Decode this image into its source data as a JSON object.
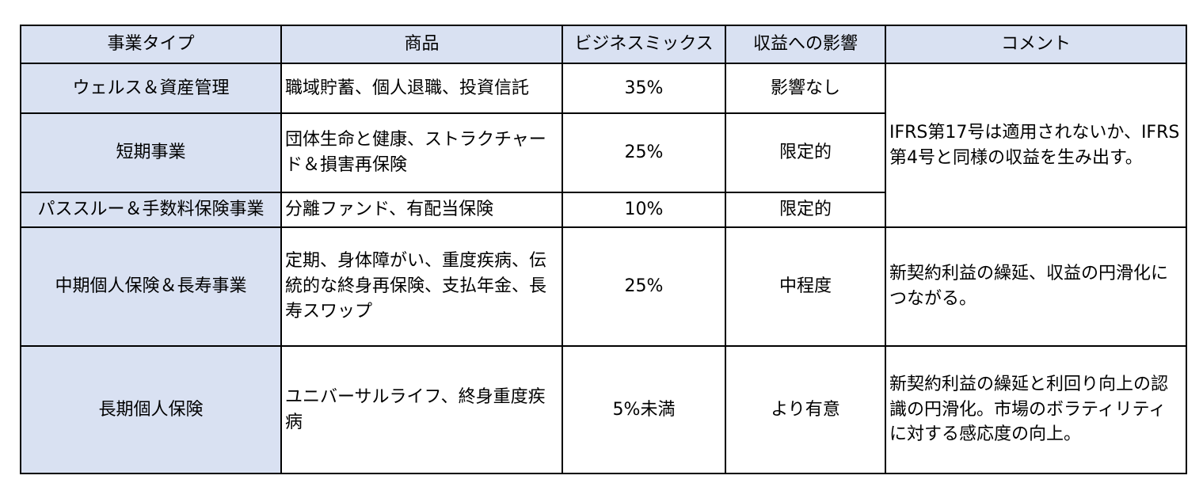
{
  "table": {
    "headers": [
      "事業タイプ",
      "商品",
      "ビジネスミックス",
      "収益への影響",
      "コメント"
    ],
    "rows": [
      {
        "type": "ウェルス＆資産管理",
        "products": "職域貯蓄、個人退職、投資信託",
        "mix": "35%",
        "impact": "影響なし"
      },
      {
        "type": "短期事業",
        "products": "団体生命と健康、ストラクチャード＆損害再保険",
        "mix": "25%",
        "impact": "限定的"
      },
      {
        "type": "パススルー＆手数料保険事業",
        "products": "分離ファンド、有配当保険",
        "mix": "10%",
        "impact": "限定的"
      },
      {
        "type": "中期個人保険＆長寿事業",
        "products": "定期、身体障がい、重度疾病、伝統的な終身再保険、支払年金、長寿スワップ",
        "mix": "25%",
        "impact": "中程度"
      },
      {
        "type": "長期個人保険",
        "products": "ユニバーサルライフ、終身重度疾病",
        "mix": "5%未満",
        "impact": "より有意"
      }
    ],
    "comments": [
      "IFRS第17号は適用されないか、IFRS第4号と同様の収益を生み出す。",
      "新契約利益の繰延、収益の円滑化につながる。",
      "新契約利益の繰延と利回り向上の認識の円滑化。市場のボラティリティに対する感応度の向上。"
    ]
  }
}
